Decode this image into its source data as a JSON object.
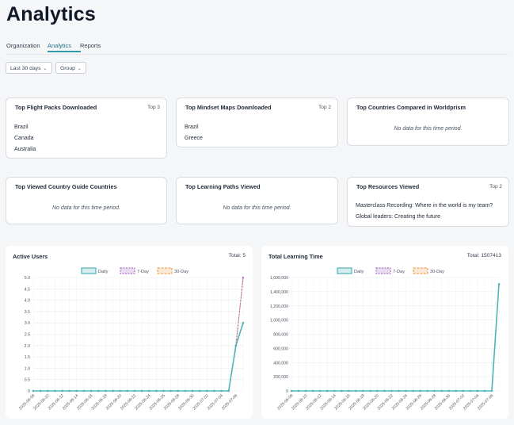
{
  "page": {
    "title": "Analytics"
  },
  "tabs": [
    {
      "label": "Organization"
    },
    {
      "label": "Analytics"
    },
    {
      "label": "Reports"
    }
  ],
  "filters": {
    "period": "Last 30 days",
    "group": "Group"
  },
  "cards": {
    "flight_packs": {
      "title": "Top Flight Packs Downloaded",
      "top": "Top 3",
      "items": [
        "Brazil",
        "Canada",
        "Australia"
      ]
    },
    "mindset_maps": {
      "title": "Top Mindset Maps Downloaded",
      "top": "Top 2",
      "items": [
        "Brazil",
        "Greece"
      ]
    },
    "countries_compared": {
      "title": "Top Countries Compared in Worldprism",
      "empty": "No data for this time period."
    },
    "country_guide": {
      "title": "Top Viewed Country Guide Countries",
      "empty": "No data for this time period."
    },
    "learning_paths": {
      "title": "Top Learning Paths Viewed",
      "empty": "No data for this time period."
    },
    "resources": {
      "title": "Top Resources Viewed",
      "top": "Top 2",
      "items": [
        "Masterclass Recording: Where in the world is my team?",
        "Global leaders: Creating the future"
      ]
    }
  },
  "charts": {
    "active_users": {
      "title": "Active Users",
      "total": "Total: 5"
    },
    "learning_time": {
      "title": "Total Learning Time",
      "total": "Total: 1507413"
    }
  },
  "chart_data": [
    {
      "type": "line",
      "title": "Active Users",
      "legend": [
        "Daily",
        "7-Day",
        "30-Day"
      ],
      "legend_position": "top",
      "grid": true,
      "colors": {
        "Daily": "#4fb3b8",
        "7-Day": "#a974c8",
        "30-Day": "#f0a25a"
      },
      "x_tick_labels": [
        "2025-06-08",
        "2025-06-10",
        "2025-06-12",
        "2025-06-14",
        "2025-06-16",
        "2025-06-18",
        "2025-06-20",
        "2025-06-22",
        "2025-06-24",
        "2025-06-26",
        "2025-06-28",
        "2025-06-30",
        "2025-07-02",
        "2025-07-04",
        "2025-07-06"
      ],
      "ylim": [
        0,
        5
      ],
      "y_ticks": [
        "0",
        "0.5",
        "1.0",
        "1.5",
        "2.0",
        "2.5",
        "3.0",
        "3.5",
        "4.0",
        "4.5",
        "5.0"
      ],
      "x_count": 30,
      "series": [
        {
          "name": "Daily",
          "values": [
            0,
            0,
            0,
            0,
            0,
            0,
            0,
            0,
            0,
            0,
            0,
            0,
            0,
            0,
            0,
            0,
            0,
            0,
            0,
            0,
            0,
            0,
            0,
            0,
            0,
            0,
            0,
            0,
            2,
            3
          ]
        },
        {
          "name": "7-Day",
          "values": [
            0,
            0,
            0,
            0,
            0,
            0,
            0,
            0,
            0,
            0,
            0,
            0,
            0,
            0,
            0,
            0,
            0,
            0,
            0,
            0,
            0,
            0,
            0,
            0,
            0,
            0,
            0,
            0,
            2,
            5
          ]
        },
        {
          "name": "30-Day",
          "values": [
            0,
            0,
            0,
            0,
            0,
            0,
            0,
            0,
            0,
            0,
            0,
            0,
            0,
            0,
            0,
            0,
            0,
            0,
            0,
            0,
            0,
            0,
            0,
            0,
            0,
            0,
            0,
            0,
            2,
            5
          ]
        }
      ]
    },
    {
      "type": "line",
      "title": "Total Learning Time",
      "legend": [
        "Daily",
        "7-Day",
        "30-Day"
      ],
      "legend_position": "top",
      "grid": true,
      "colors": {
        "Daily": "#4fb3b8",
        "7-Day": "#a974c8",
        "30-Day": "#f0a25a"
      },
      "x_tick_labels": [
        "2025-06-08",
        "2025-06-10",
        "2025-06-12",
        "2025-06-14",
        "2025-06-16",
        "2025-06-18",
        "2025-06-20",
        "2025-06-22",
        "2025-06-24",
        "2025-06-26",
        "2025-06-28",
        "2025-06-30",
        "2025-07-02",
        "2025-07-04",
        "2025-07-06"
      ],
      "ylim": [
        0,
        1600000
      ],
      "y_ticks": [
        "0",
        "200,000",
        "400,000",
        "600,000",
        "800,000",
        "1,000,000",
        "1,200,000",
        "1,400,000",
        "1,600,000"
      ],
      "x_count": 30,
      "series": [
        {
          "name": "Daily",
          "values": [
            0,
            0,
            0,
            0,
            0,
            0,
            0,
            0,
            0,
            0,
            0,
            0,
            0,
            0,
            0,
            0,
            0,
            0,
            0,
            0,
            0,
            0,
            0,
            0,
            0,
            0,
            0,
            0,
            0,
            1507413
          ]
        }
      ]
    }
  ]
}
